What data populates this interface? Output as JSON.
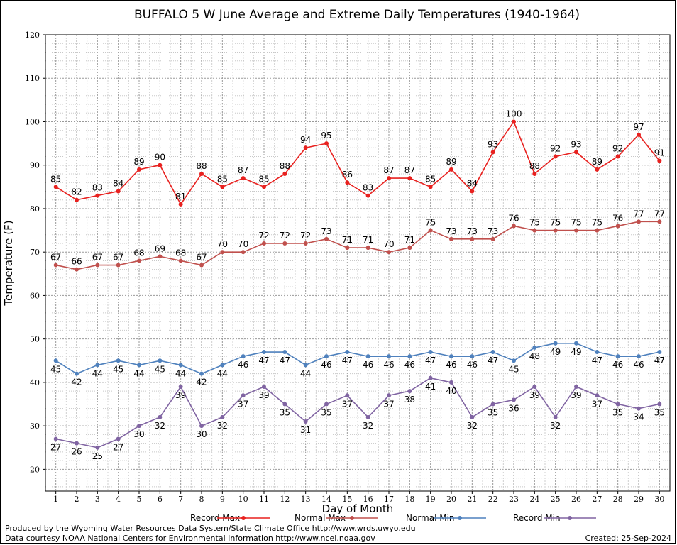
{
  "chart_data": {
    "type": "line",
    "title": "BUFFALO 5 W June Average and Extreme Daily Temperatures (1940-1964)",
    "xlabel": "Day of Month",
    "ylabel": "Temperature (F)",
    "ylim": [
      15,
      120
    ],
    "yticks": [
      20,
      30,
      40,
      50,
      60,
      70,
      80,
      90,
      100,
      110,
      120
    ],
    "x": [
      1,
      2,
      3,
      4,
      5,
      6,
      7,
      8,
      9,
      10,
      11,
      12,
      13,
      14,
      15,
      16,
      17,
      18,
      19,
      20,
      21,
      22,
      23,
      24,
      25,
      26,
      27,
      28,
      29,
      30
    ],
    "grid": true,
    "legend_position": "bottom",
    "series": [
      {
        "name": "Record Max",
        "color": "#e8211f",
        "values": [
          85,
          82,
          83,
          84,
          89,
          90,
          81,
          88,
          85,
          87,
          85,
          88,
          94,
          95,
          86,
          83,
          87,
          87,
          85,
          89,
          84,
          93,
          100,
          88,
          92,
          93,
          89,
          92,
          97,
          91
        ]
      },
      {
        "name": "Normal Max",
        "color": "#c0504d",
        "values": [
          67,
          66,
          67,
          67,
          68,
          69,
          68,
          67,
          70,
          70,
          72,
          72,
          72,
          73,
          71,
          71,
          70,
          71,
          75,
          73,
          73,
          73,
          76,
          75,
          75,
          75,
          75,
          76,
          77,
          77
        ]
      },
      {
        "name": "Normal Min",
        "color": "#4f81bd",
        "values": [
          45,
          42,
          44,
          45,
          44,
          45,
          44,
          42,
          44,
          46,
          47,
          47,
          44,
          46,
          47,
          46,
          46,
          46,
          47,
          46,
          46,
          47,
          45,
          48,
          49,
          49,
          47,
          46,
          46,
          47
        ]
      },
      {
        "name": "Record Min",
        "color": "#8064a2",
        "values": [
          27,
          26,
          25,
          27,
          30,
          32,
          39,
          30,
          32,
          37,
          39,
          35,
          31,
          35,
          37,
          32,
          37,
          38,
          41,
          40,
          32,
          35,
          36,
          39,
          32,
          39,
          37,
          35,
          34,
          35
        ]
      }
    ]
  },
  "footer": {
    "produced_by": "Produced by the Wyoming Water Resources Data System/State Climate Office http://www.wrds.uwyo.edu",
    "courtesy": "Data courtesy NOAA National Centers for Environmental Information http://www.ncei.noaa.gov",
    "created": "Created:  25-Sep-2024"
  }
}
